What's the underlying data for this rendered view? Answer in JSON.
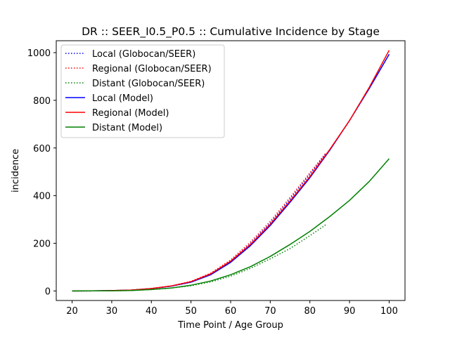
{
  "chart_data": {
    "type": "line",
    "title": "DR :: SEER_I0.5_P0.5 ::  Cumulative Incidence by Stage",
    "xlabel": "Time Point / Age Group",
    "ylabel": "incidence",
    "xlim": [
      16,
      104
    ],
    "ylim": [
      -40,
      1050
    ],
    "xticks": [
      20,
      30,
      40,
      50,
      60,
      70,
      80,
      90,
      100
    ],
    "yticks": [
      0,
      200,
      400,
      600,
      800,
      1000
    ],
    "grid": false,
    "legend_position": "top-left",
    "series": [
      {
        "name": "Local (Globocan/SEER)",
        "color": "#0000ff",
        "style": "dotted",
        "x": [
          20,
          25,
          30,
          35,
          40,
          45,
          50,
          55,
          60,
          65,
          70,
          75,
          80,
          84
        ],
        "y": [
          0,
          0.5,
          1.5,
          4,
          10,
          20,
          37,
          70,
          125,
          198,
          285,
          385,
          490,
          575
        ]
      },
      {
        "name": "Regional (Globocan/SEER)",
        "color": "#ff0000",
        "style": "dotted",
        "x": [
          20,
          25,
          30,
          35,
          40,
          45,
          50,
          55,
          60,
          65,
          70,
          75,
          80,
          84
        ],
        "y": [
          0,
          0.5,
          1.5,
          4,
          10,
          21,
          40,
          75,
          130,
          205,
          292,
          392,
          495,
          578
        ]
      },
      {
        "name": "Distant (Globocan/SEER)",
        "color": "#008000",
        "style": "dotted",
        "x": [
          20,
          25,
          30,
          35,
          40,
          45,
          50,
          55,
          60,
          65,
          70,
          75,
          80,
          84
        ],
        "y": [
          0,
          0.3,
          0.8,
          2,
          6,
          12,
          22,
          38,
          62,
          95,
          135,
          178,
          232,
          278
        ]
      },
      {
        "name": "Local (Model)",
        "color": "#0000ff",
        "style": "solid",
        "x": [
          20,
          25,
          30,
          35,
          40,
          45,
          50,
          55,
          60,
          65,
          70,
          75,
          80,
          85,
          90,
          95,
          100
        ],
        "y": [
          0,
          0.5,
          1.5,
          4,
          10,
          20,
          37,
          68,
          120,
          190,
          275,
          372,
          475,
          590,
          715,
          850,
          993
        ]
      },
      {
        "name": "Regional (Model)",
        "color": "#ff0000",
        "style": "solid",
        "x": [
          20,
          25,
          30,
          35,
          40,
          45,
          50,
          55,
          60,
          65,
          70,
          75,
          80,
          85,
          90,
          95,
          100
        ],
        "y": [
          0,
          0.5,
          1.5,
          4,
          10,
          21,
          39,
          72,
          125,
          195,
          280,
          377,
          480,
          593,
          715,
          855,
          1010
        ]
      },
      {
        "name": "Distant (Model)",
        "color": "#008000",
        "style": "solid",
        "x": [
          20,
          25,
          30,
          35,
          40,
          45,
          50,
          55,
          60,
          65,
          70,
          75,
          80,
          85,
          90,
          95,
          100
        ],
        "y": [
          0,
          0.3,
          0.8,
          2,
          6,
          12,
          24,
          42,
          68,
          102,
          145,
          195,
          250,
          312,
          380,
          460,
          555
        ]
      }
    ]
  }
}
